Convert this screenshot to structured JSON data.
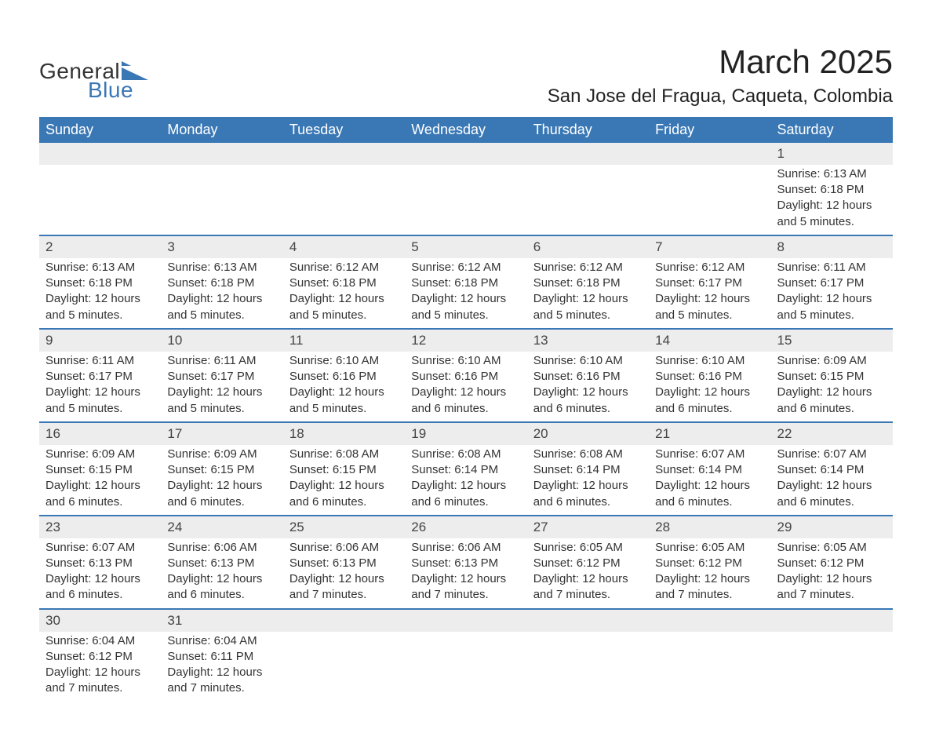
{
  "logo": {
    "text_general": "General",
    "text_blue": "Blue",
    "shape_color": "#3a78b5"
  },
  "title": "March 2025",
  "location": "San Jose del Fragua, Caqueta, Colombia",
  "columns": [
    "Sunday",
    "Monday",
    "Tuesday",
    "Wednesday",
    "Thursday",
    "Friday",
    "Saturday"
  ],
  "colors": {
    "header_bg": "#3a78b5",
    "header_text": "#ffffff",
    "daynum_bg": "#ededed",
    "row_divider": "#3a78b5",
    "body_text": "#333333",
    "background": "#ffffff"
  },
  "weeks": [
    [
      null,
      null,
      null,
      null,
      null,
      null,
      {
        "n": "1",
        "sr": "Sunrise: 6:13 AM",
        "ss": "Sunset: 6:18 PM",
        "d1": "Daylight: 12 hours",
        "d2": "and 5 minutes."
      }
    ],
    [
      {
        "n": "2",
        "sr": "Sunrise: 6:13 AM",
        "ss": "Sunset: 6:18 PM",
        "d1": "Daylight: 12 hours",
        "d2": "and 5 minutes."
      },
      {
        "n": "3",
        "sr": "Sunrise: 6:13 AM",
        "ss": "Sunset: 6:18 PM",
        "d1": "Daylight: 12 hours",
        "d2": "and 5 minutes."
      },
      {
        "n": "4",
        "sr": "Sunrise: 6:12 AM",
        "ss": "Sunset: 6:18 PM",
        "d1": "Daylight: 12 hours",
        "d2": "and 5 minutes."
      },
      {
        "n": "5",
        "sr": "Sunrise: 6:12 AM",
        "ss": "Sunset: 6:18 PM",
        "d1": "Daylight: 12 hours",
        "d2": "and 5 minutes."
      },
      {
        "n": "6",
        "sr": "Sunrise: 6:12 AM",
        "ss": "Sunset: 6:18 PM",
        "d1": "Daylight: 12 hours",
        "d2": "and 5 minutes."
      },
      {
        "n": "7",
        "sr": "Sunrise: 6:12 AM",
        "ss": "Sunset: 6:17 PM",
        "d1": "Daylight: 12 hours",
        "d2": "and 5 minutes."
      },
      {
        "n": "8",
        "sr": "Sunrise: 6:11 AM",
        "ss": "Sunset: 6:17 PM",
        "d1": "Daylight: 12 hours",
        "d2": "and 5 minutes."
      }
    ],
    [
      {
        "n": "9",
        "sr": "Sunrise: 6:11 AM",
        "ss": "Sunset: 6:17 PM",
        "d1": "Daylight: 12 hours",
        "d2": "and 5 minutes."
      },
      {
        "n": "10",
        "sr": "Sunrise: 6:11 AM",
        "ss": "Sunset: 6:17 PM",
        "d1": "Daylight: 12 hours",
        "d2": "and 5 minutes."
      },
      {
        "n": "11",
        "sr": "Sunrise: 6:10 AM",
        "ss": "Sunset: 6:16 PM",
        "d1": "Daylight: 12 hours",
        "d2": "and 5 minutes."
      },
      {
        "n": "12",
        "sr": "Sunrise: 6:10 AM",
        "ss": "Sunset: 6:16 PM",
        "d1": "Daylight: 12 hours",
        "d2": "and 6 minutes."
      },
      {
        "n": "13",
        "sr": "Sunrise: 6:10 AM",
        "ss": "Sunset: 6:16 PM",
        "d1": "Daylight: 12 hours",
        "d2": "and 6 minutes."
      },
      {
        "n": "14",
        "sr": "Sunrise: 6:10 AM",
        "ss": "Sunset: 6:16 PM",
        "d1": "Daylight: 12 hours",
        "d2": "and 6 minutes."
      },
      {
        "n": "15",
        "sr": "Sunrise: 6:09 AM",
        "ss": "Sunset: 6:15 PM",
        "d1": "Daylight: 12 hours",
        "d2": "and 6 minutes."
      }
    ],
    [
      {
        "n": "16",
        "sr": "Sunrise: 6:09 AM",
        "ss": "Sunset: 6:15 PM",
        "d1": "Daylight: 12 hours",
        "d2": "and 6 minutes."
      },
      {
        "n": "17",
        "sr": "Sunrise: 6:09 AM",
        "ss": "Sunset: 6:15 PM",
        "d1": "Daylight: 12 hours",
        "d2": "and 6 minutes."
      },
      {
        "n": "18",
        "sr": "Sunrise: 6:08 AM",
        "ss": "Sunset: 6:15 PM",
        "d1": "Daylight: 12 hours",
        "d2": "and 6 minutes."
      },
      {
        "n": "19",
        "sr": "Sunrise: 6:08 AM",
        "ss": "Sunset: 6:14 PM",
        "d1": "Daylight: 12 hours",
        "d2": "and 6 minutes."
      },
      {
        "n": "20",
        "sr": "Sunrise: 6:08 AM",
        "ss": "Sunset: 6:14 PM",
        "d1": "Daylight: 12 hours",
        "d2": "and 6 minutes."
      },
      {
        "n": "21",
        "sr": "Sunrise: 6:07 AM",
        "ss": "Sunset: 6:14 PM",
        "d1": "Daylight: 12 hours",
        "d2": "and 6 minutes."
      },
      {
        "n": "22",
        "sr": "Sunrise: 6:07 AM",
        "ss": "Sunset: 6:14 PM",
        "d1": "Daylight: 12 hours",
        "d2": "and 6 minutes."
      }
    ],
    [
      {
        "n": "23",
        "sr": "Sunrise: 6:07 AM",
        "ss": "Sunset: 6:13 PM",
        "d1": "Daylight: 12 hours",
        "d2": "and 6 minutes."
      },
      {
        "n": "24",
        "sr": "Sunrise: 6:06 AM",
        "ss": "Sunset: 6:13 PM",
        "d1": "Daylight: 12 hours",
        "d2": "and 6 minutes."
      },
      {
        "n": "25",
        "sr": "Sunrise: 6:06 AM",
        "ss": "Sunset: 6:13 PM",
        "d1": "Daylight: 12 hours",
        "d2": "and 7 minutes."
      },
      {
        "n": "26",
        "sr": "Sunrise: 6:06 AM",
        "ss": "Sunset: 6:13 PM",
        "d1": "Daylight: 12 hours",
        "d2": "and 7 minutes."
      },
      {
        "n": "27",
        "sr": "Sunrise: 6:05 AM",
        "ss": "Sunset: 6:12 PM",
        "d1": "Daylight: 12 hours",
        "d2": "and 7 minutes."
      },
      {
        "n": "28",
        "sr": "Sunrise: 6:05 AM",
        "ss": "Sunset: 6:12 PM",
        "d1": "Daylight: 12 hours",
        "d2": "and 7 minutes."
      },
      {
        "n": "29",
        "sr": "Sunrise: 6:05 AM",
        "ss": "Sunset: 6:12 PM",
        "d1": "Daylight: 12 hours",
        "d2": "and 7 minutes."
      }
    ],
    [
      {
        "n": "30",
        "sr": "Sunrise: 6:04 AM",
        "ss": "Sunset: 6:12 PM",
        "d1": "Daylight: 12 hours",
        "d2": "and 7 minutes."
      },
      {
        "n": "31",
        "sr": "Sunrise: 6:04 AM",
        "ss": "Sunset: 6:11 PM",
        "d1": "Daylight: 12 hours",
        "d2": "and 7 minutes."
      },
      null,
      null,
      null,
      null,
      null
    ]
  ]
}
